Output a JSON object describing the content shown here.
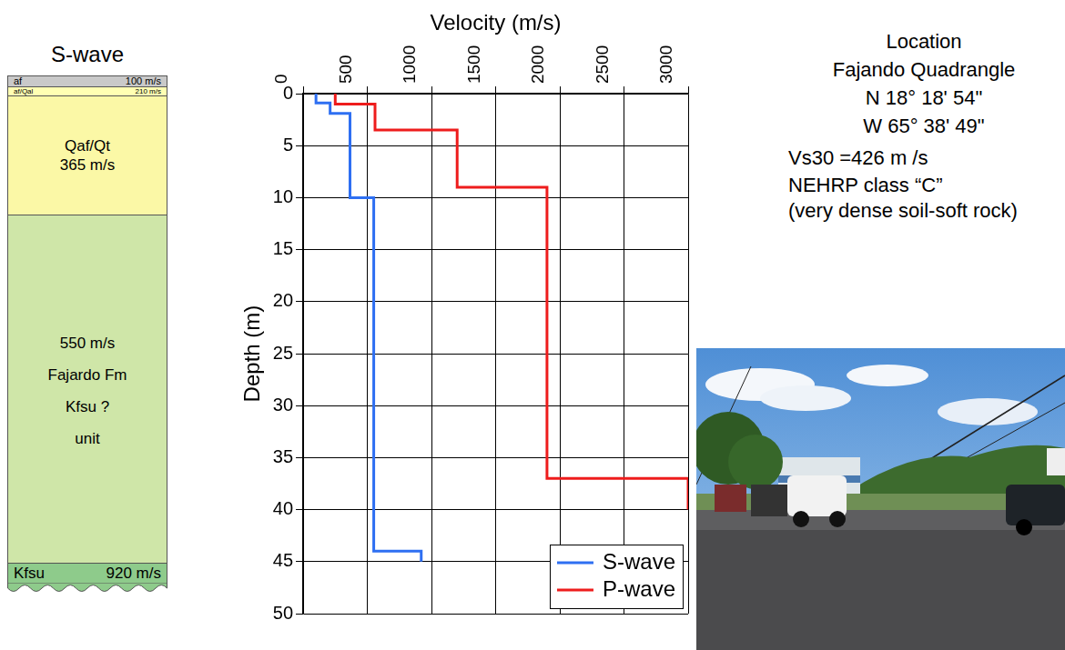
{
  "chart_data": {
    "type": "line",
    "xlabel": "Velocity (m/s)",
    "ylabel": "Depth (m)",
    "xlim": [
      0,
      3000
    ],
    "xticks": [
      0,
      500,
      1000,
      1500,
      2000,
      2500,
      3000
    ],
    "ylim": [
      0,
      50
    ],
    "yticks": [
      0,
      5,
      10,
      15,
      20,
      25,
      30,
      35,
      40,
      45,
      50
    ],
    "grid": true,
    "legend": "lower right",
    "series": [
      {
        "name": "S-wave",
        "color": "#2e6ff2",
        "x": [
          100,
          100,
          210,
          210,
          365,
          365,
          550,
          550,
          920,
          920
        ],
        "values": [
          0,
          0.9,
          0.9,
          1.9,
          1.9,
          10,
          10,
          44,
          44,
          45
        ]
      },
      {
        "name": "P-wave",
        "color": "#ee1c1c",
        "x": [
          250,
          250,
          560,
          560,
          1200,
          1200,
          1900,
          1900,
          3000,
          3000
        ],
        "values": [
          0,
          1,
          1,
          3.5,
          3.5,
          9,
          9,
          37,
          37,
          40
        ]
      }
    ]
  },
  "column": {
    "title": "S-wave",
    "layers": [
      {
        "lines": [
          "af",
          "100 m/s"
        ]
      },
      {
        "lines": [
          "af/Qal",
          "210 m/s"
        ]
      },
      {
        "lines": [
          "Qaf/Qt",
          "365 m/s"
        ]
      },
      {
        "lines": [
          "550 m/s",
          "Fajardo Fm",
          "Kfsu ?",
          "unit"
        ]
      },
      {
        "lines": [
          "Kfsu",
          "920 m/s"
        ]
      }
    ]
  },
  "location": {
    "title": "Location",
    "lines": [
      "Fajando Quadrangle",
      "N 18° 18' 54\"",
      "W 65° 38' 49\""
    ],
    "notes": [
      "Vs30 =426 m /s",
      "NEHRP class “C”",
      "(very dense soil-soft rock)"
    ]
  }
}
